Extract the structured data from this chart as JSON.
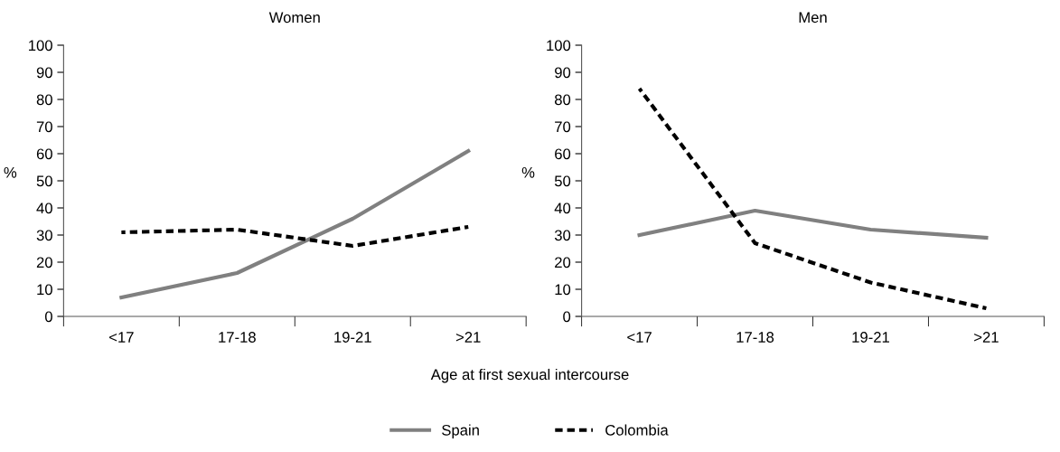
{
  "chart_data": [
    {
      "type": "line",
      "title": "Women",
      "ylabel": "%",
      "categories": [
        "<17",
        "17-18",
        "19-21",
        ">21"
      ],
      "ylim": [
        0,
        100
      ],
      "yticks": [
        0,
        10,
        20,
        30,
        40,
        50,
        60,
        70,
        80,
        90,
        100
      ],
      "grid": false,
      "legend": "bottom",
      "series": [
        {
          "name": "Spain",
          "color": "#808080",
          "line_style": "solid",
          "values": [
            7,
            16,
            36,
            61
          ]
        },
        {
          "name": "Colombia",
          "color": "#000000",
          "line_style": "dotted",
          "values": [
            31,
            32,
            26,
            33
          ]
        }
      ]
    },
    {
      "type": "line",
      "title": "Men",
      "ylabel": "%",
      "xlabel": "Age at first sexual intercourse",
      "categories": [
        "<17",
        "17-18",
        "19-21",
        ">21"
      ],
      "ylim": [
        0,
        100
      ],
      "yticks": [
        0,
        10,
        20,
        30,
        40,
        50,
        60,
        70,
        80,
        90,
        100
      ],
      "grid": false,
      "series": [
        {
          "name": "Spain",
          "color": "#808080",
          "line_style": "solid",
          "values": [
            30,
            39,
            32,
            29
          ]
        },
        {
          "name": "Colombia",
          "color": "#000000",
          "line_style": "dotted",
          "values": [
            84,
            27,
            12.5,
            3
          ]
        }
      ]
    }
  ]
}
